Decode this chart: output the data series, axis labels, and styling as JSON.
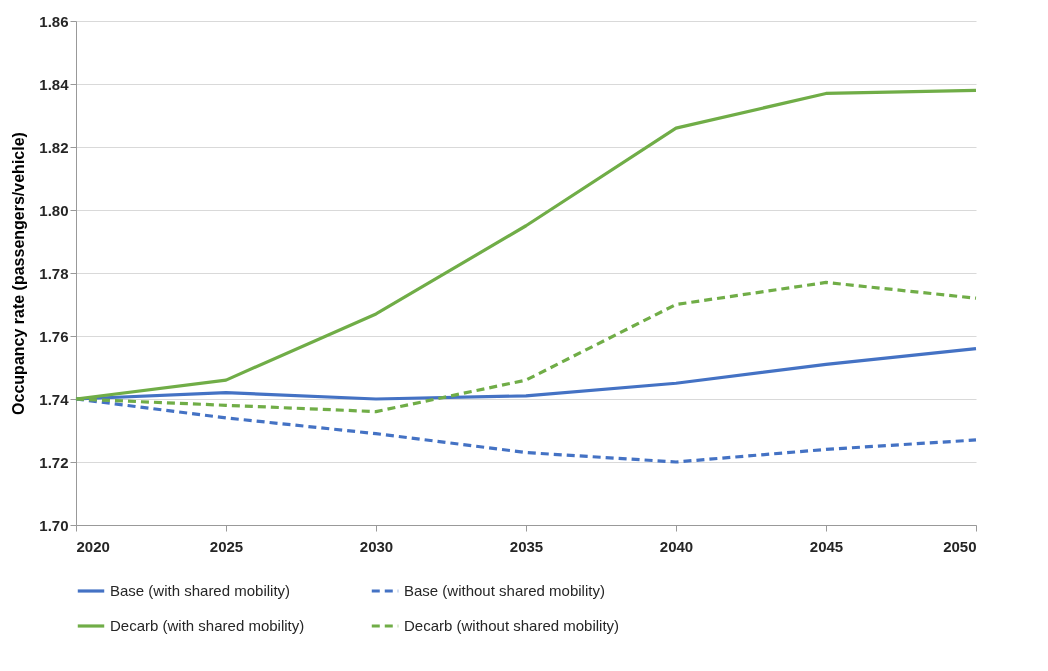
{
  "chart_data": {
    "type": "line",
    "ylabel": "Occupancy rate (passengers/vehicle)",
    "x": [
      2020,
      2025,
      2030,
      2035,
      2040,
      2045,
      2050
    ],
    "series": [
      {
        "name": "Base (with shared mobility)",
        "color": "#4472c4",
        "line_style": "solid",
        "values": [
          1.74,
          1.742,
          1.74,
          1.741,
          1.745,
          1.751,
          1.756
        ]
      },
      {
        "name": "Base (without shared mobility)",
        "color": "#4472c4",
        "line_style": "dashed",
        "values": [
          1.74,
          1.734,
          1.729,
          1.723,
          1.72,
          1.724,
          1.727
        ]
      },
      {
        "name": "Decarb (with shared mobility)",
        "color": "#70ad47",
        "line_style": "solid",
        "values": [
          1.74,
          1.746,
          1.767,
          1.795,
          1.826,
          1.837,
          1.838
        ]
      },
      {
        "name": "Decarb (without shared mobility)",
        "color": "#70ad47",
        "line_style": "dashed",
        "values": [
          1.74,
          1.738,
          1.736,
          1.746,
          1.77,
          1.777,
          1.772
        ]
      }
    ],
    "xlim": [
      2020,
      2050
    ],
    "xticks": [
      2020,
      2025,
      2030,
      2035,
      2040,
      2045,
      2050
    ],
    "ylim": [
      1.7,
      1.86
    ],
    "yticks": [
      {
        "value": 1.7,
        "label": "1.70"
      },
      {
        "value": 1.72,
        "label": "1.72"
      },
      {
        "value": 1.74,
        "label": "1.74"
      },
      {
        "value": 1.76,
        "label": "1.76"
      },
      {
        "value": 1.78,
        "label": "1.78"
      },
      {
        "value": 1.8,
        "label": "1.80"
      },
      {
        "value": 1.82,
        "label": "1.82"
      },
      {
        "value": 1.84,
        "label": "1.84"
      },
      {
        "value": 1.86,
        "label": "1.86"
      }
    ],
    "grid": "y",
    "legend": "bottom",
    "marker": "none"
  }
}
